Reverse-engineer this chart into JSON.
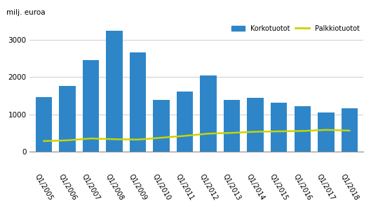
{
  "categories": [
    "Q1/2005",
    "Q1/2006",
    "Q1/2007",
    "Q1/2008",
    "Q1/2009",
    "Q1/2010",
    "Q1/2011",
    "Q1/2012",
    "Q1/2013",
    "Q1/2014",
    "Q1/2015",
    "Q1/2016",
    "Q1/2017",
    "Q1/2018"
  ],
  "korkotuotot": [
    1470,
    1770,
    2460,
    3240,
    2670,
    1400,
    1610,
    2040,
    1390,
    1440,
    1320,
    1230,
    1060,
    1170
  ],
  "palkkiotuotot": [
    290,
    310,
    360,
    340,
    330,
    380,
    430,
    490,
    510,
    540,
    550,
    560,
    590,
    570
  ],
  "bar_color": "#2e86c8",
  "line_color": "#c8d400",
  "ylabel": "milj. euroa",
  "ylim": [
    0,
    3500
  ],
  "yticks": [
    0,
    1000,
    2000,
    3000
  ],
  "legend_korko": "Korkotuotot",
  "legend_palkkio": "Palkkiotuotot",
  "background_color": "#ffffff",
  "grid_color": "#cccccc"
}
